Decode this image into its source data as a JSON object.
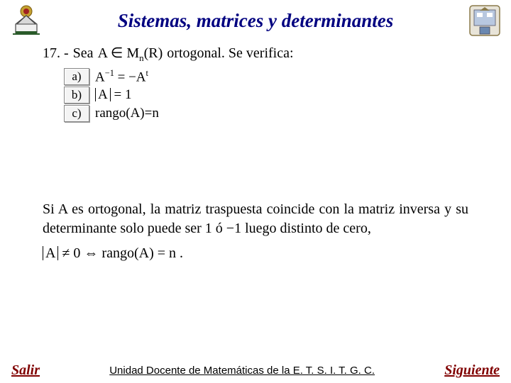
{
  "title": "Sistemas, matrices y determinantes",
  "question": {
    "number": "17. -",
    "stem_prefix": "Sea",
    "stem_math": "A ∈ M",
    "stem_math_sub": "n",
    "stem_math_paren": "(R)",
    "stem_suffix": "ortogonal. Se verifica:"
  },
  "options": {
    "a": {
      "label": "a)",
      "math_html": "A<span class='math-sup'>−1</span> = −A<span class='math-sup'>t</span>"
    },
    "b": {
      "label": "b)",
      "math_html": "<span class='abs-wrap'>A</span> = 1"
    },
    "c": {
      "label": "c)",
      "math_html": "rango(A)=n"
    }
  },
  "solution": {
    "text": "Si A es ortogonal, la matriz traspuesta coincide con la matriz inversa y su determinante solo puede ser 1 ó −1 luego distinto de cero,",
    "math_html": "<span class='abs-wrap'>A</span> ≠ 0 ⇔ rango(A) = n ."
  },
  "footer": {
    "left": "Salir",
    "center": "Unidad Docente de Matemáticas de la E. T. S. I. T. G. C.",
    "right": "Siguiente"
  },
  "colors": {
    "title_color": "#000080",
    "footer_link_color": "#800000",
    "background": "#ffffff"
  }
}
